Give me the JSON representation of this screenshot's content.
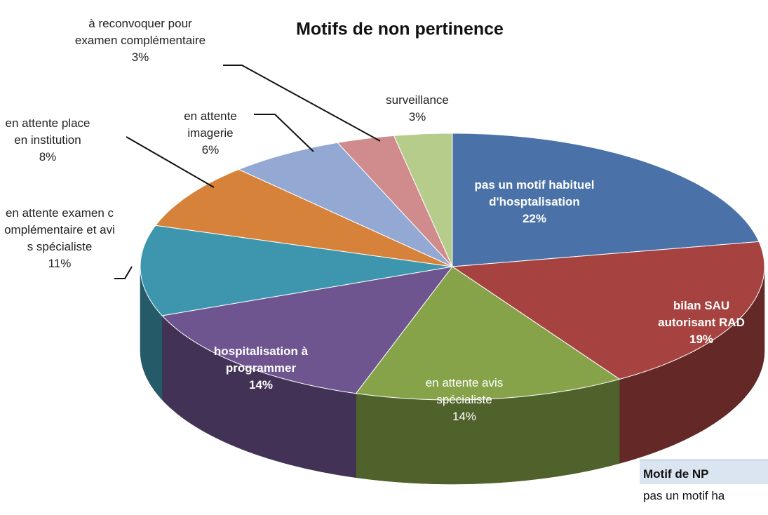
{
  "chart_data": {
    "type": "pie",
    "title": "Motifs de non pertinence",
    "categories": [
      "pas un motif habituel d'hosptalisation",
      "bilan SAU autorisant RAD",
      "en attente avis spécialiste",
      "hospitalisation à programmer",
      "en attente examen complémentaire et avis spécialiste",
      "en attente place en institution",
      "en attente imagerie",
      "à reconvoquer pour examen complémentaire",
      "surveillance"
    ],
    "values": [
      22,
      19,
      14,
      14,
      11,
      8,
      6,
      3,
      3
    ],
    "value_labels": [
      "22%",
      "19%",
      "14%",
      "14%",
      "11%",
      "8%",
      "6%",
      "3%",
      "3%"
    ],
    "colors": [
      "#4a72a8",
      "#a64340",
      "#86a34a",
      "#6e5590",
      "#3d96ad",
      "#d6823a",
      "#93a9d3",
      "#d08c8c",
      "#b6cc8a"
    ]
  },
  "table": {
    "header": "Motif de NP",
    "rows": [
      [
        "pas un motif ha"
      ]
    ]
  }
}
